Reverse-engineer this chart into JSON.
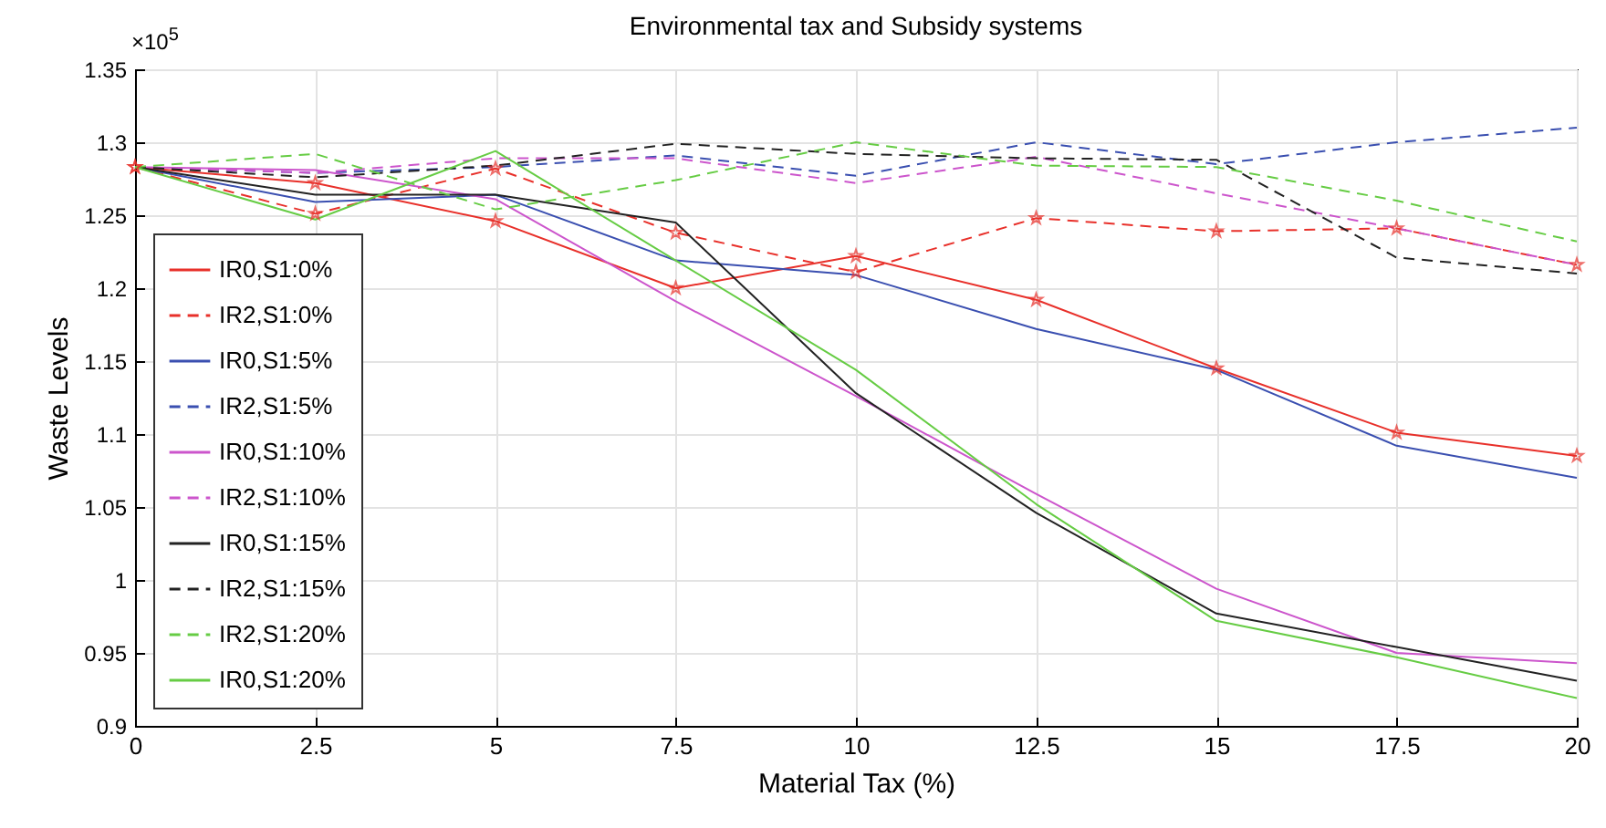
{
  "chart_data": {
    "type": "line",
    "title": "Environmental tax and Subsidy systems",
    "xlabel": "Material Tax (%)",
    "ylabel": "Waste Levels",
    "annotations": [
      "×10$^{5}$"
    ],
    "x": [
      0,
      2.5,
      5,
      7.5,
      10,
      12.5,
      15,
      17.5,
      20
    ],
    "xlim": [
      0,
      20
    ],
    "xticks": [
      0,
      2.5,
      5,
      7.5,
      10,
      12.5,
      15,
      17.5,
      20
    ],
    "ylim": [
      0.9,
      1.35
    ],
    "yticks": [
      0.9,
      0.95,
      1,
      1.05,
      1.1,
      1.15,
      1.2,
      1.25,
      1.3,
      1.35
    ],
    "grid": true,
    "legend": "bottom left",
    "series": [
      {
        "name": "IR0,S1:0%",
        "color": "#e8302a",
        "line_style": "solid",
        "marker": "star",
        "values": [
          1.283,
          1.272,
          1.246,
          1.2,
          1.222,
          1.192,
          1.145,
          1.101,
          1.085
        ]
      },
      {
        "name": "IR2,S1:0%",
        "color": "#e8302a",
        "line_style": "dashed",
        "marker": "star",
        "values": [
          1.283,
          1.251,
          1.282,
          1.238,
          1.211,
          1.248,
          1.239,
          1.241,
          1.216
        ]
      },
      {
        "name": "IR0,S1:5%",
        "color": "#3a4fb0",
        "line_style": "solid",
        "marker": "none",
        "values": [
          1.283,
          1.259,
          1.264,
          1.219,
          1.209,
          1.172,
          1.144,
          1.092,
          1.07
        ]
      },
      {
        "name": "IR2,S1:5%",
        "color": "#3a4fb0",
        "line_style": "dashed",
        "marker": "none",
        "values": [
          1.283,
          1.279,
          1.283,
          1.291,
          1.277,
          1.3,
          1.285,
          1.3,
          1.31
        ]
      },
      {
        "name": "IR0,S1:10%",
        "color": "#cc55cc",
        "line_style": "solid",
        "marker": "none",
        "values": [
          1.283,
          1.281,
          1.261,
          1.191,
          1.126,
          1.059,
          0.994,
          0.95,
          0.943
        ]
      },
      {
        "name": "IR2,S1:10%",
        "color": "#cc55cc",
        "line_style": "dashed",
        "marker": "none",
        "values": [
          1.283,
          1.279,
          1.289,
          1.289,
          1.272,
          1.29,
          1.265,
          1.241,
          1.216
        ]
      },
      {
        "name": "IR0,S1:15%",
        "color": "#222222",
        "line_style": "solid",
        "marker": "none",
        "values": [
          1.283,
          1.264,
          1.264,
          1.245,
          1.128,
          1.046,
          0.977,
          0.954,
          0.931
        ]
      },
      {
        "name": "IR2,S1:15%",
        "color": "#222222",
        "line_style": "dashed",
        "marker": "none",
        "values": [
          1.283,
          1.276,
          1.284,
          1.299,
          1.292,
          1.289,
          1.288,
          1.221,
          1.21
        ]
      },
      {
        "name": "IR2,S1:20%",
        "color": "#66cc44",
        "line_style": "dashed",
        "marker": "none",
        "values": [
          1.283,
          1.292,
          1.254,
          1.274,
          1.3,
          1.284,
          1.283,
          1.26,
          1.232
        ]
      },
      {
        "name": "IR0,S1:20%",
        "color": "#66cc44",
        "line_style": "solid",
        "marker": "none",
        "values": [
          1.283,
          1.247,
          1.294,
          1.219,
          1.144,
          1.052,
          0.972,
          0.947,
          0.919
        ]
      }
    ]
  }
}
